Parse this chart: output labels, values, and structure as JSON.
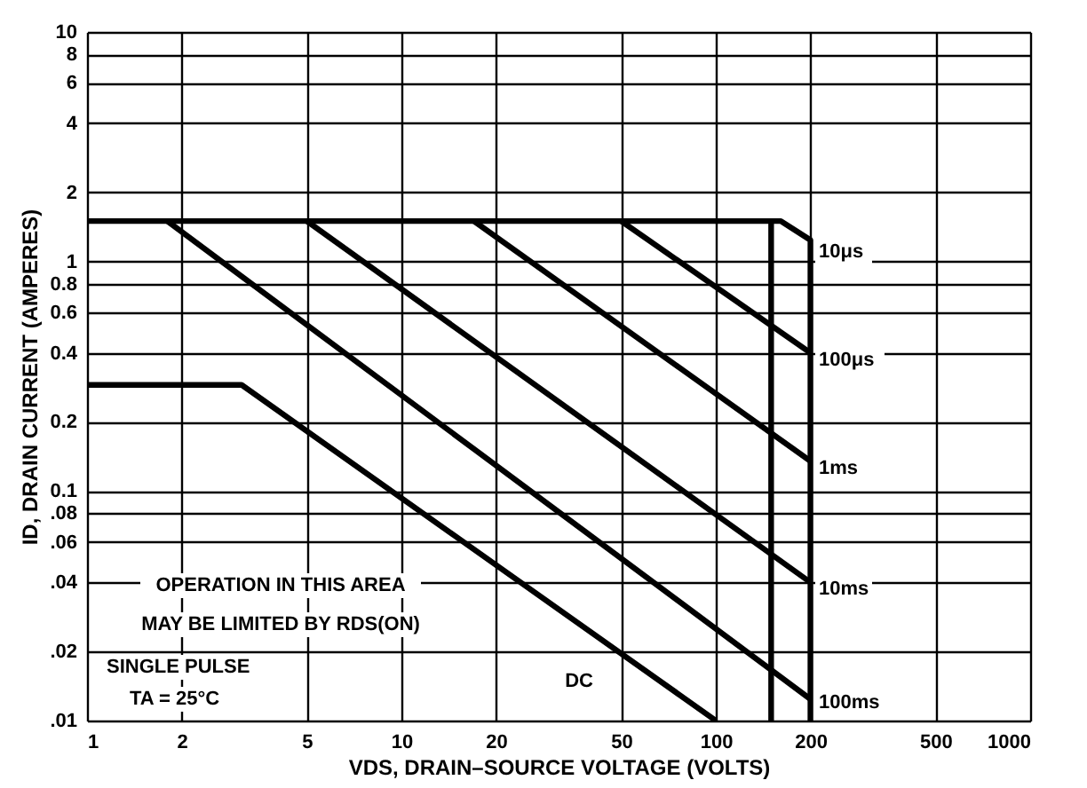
{
  "chart_data": {
    "type": "line",
    "xlabel": "VDS, DRAIN–SOURCE VOLTAGE (VOLTS)",
    "ylabel": "ID, DRAIN CURRENT (AMPERES)",
    "log": "xy",
    "grid": true,
    "marker": "none",
    "line_style": "solid",
    "xlim": [
      1,
      1000
    ],
    "xticks": [
      1,
      2,
      5,
      10,
      20,
      50,
      100,
      200,
      500,
      1000
    ],
    "ylim": [
      0.01,
      10
    ],
    "yticks": [
      {
        "value": 0.01,
        "label": ".01"
      },
      {
        "value": 0.02,
        "label": ".02"
      },
      {
        "value": 0.04,
        "label": ".04"
      },
      {
        "value": 0.06,
        "label": ".06"
      },
      {
        "value": 0.08,
        "label": ".08"
      },
      0.1,
      0.2,
      0.4,
      0.6,
      0.8,
      1,
      2,
      4,
      6,
      8,
      10
    ],
    "series": [
      {
        "color": "#000000",
        "x": [
          1,
          161,
          200,
          200
        ],
        "values": [
          1.5,
          1.5,
          1.24,
          0.01
        ]
      },
      {
        "color": "#000000",
        "x": [
          50,
          200
        ],
        "values": [
          1.5,
          0.4
        ]
      },
      {
        "color": "#000000",
        "x": [
          17,
          200
        ],
        "values": [
          1.5,
          0.135
        ]
      },
      {
        "color": "#000000",
        "x": [
          5,
          200
        ],
        "values": [
          1.5,
          0.04
        ]
      },
      {
        "color": "#000000",
        "x": [
          1.8,
          200
        ],
        "values": [
          1.5,
          0.0124
        ]
      },
      {
        "color": "#000000",
        "x": [
          1,
          3.1,
          100
        ],
        "values": [
          0.29,
          0.29,
          0.01
        ]
      },
      {
        "color": "#000000",
        "x": [
          150,
          150
        ],
        "values": [
          1.5,
          0.01
        ]
      }
    ],
    "annotations": [
      "10μs",
      "100μs",
      "1ms",
      "10ms",
      "100ms",
      "DC",
      "OPERATION IN THIS AREA",
      "MAY BE LIMITED BY RDS(ON)",
      "SINGLE PULSE",
      "TA = 25°C"
    ]
  }
}
